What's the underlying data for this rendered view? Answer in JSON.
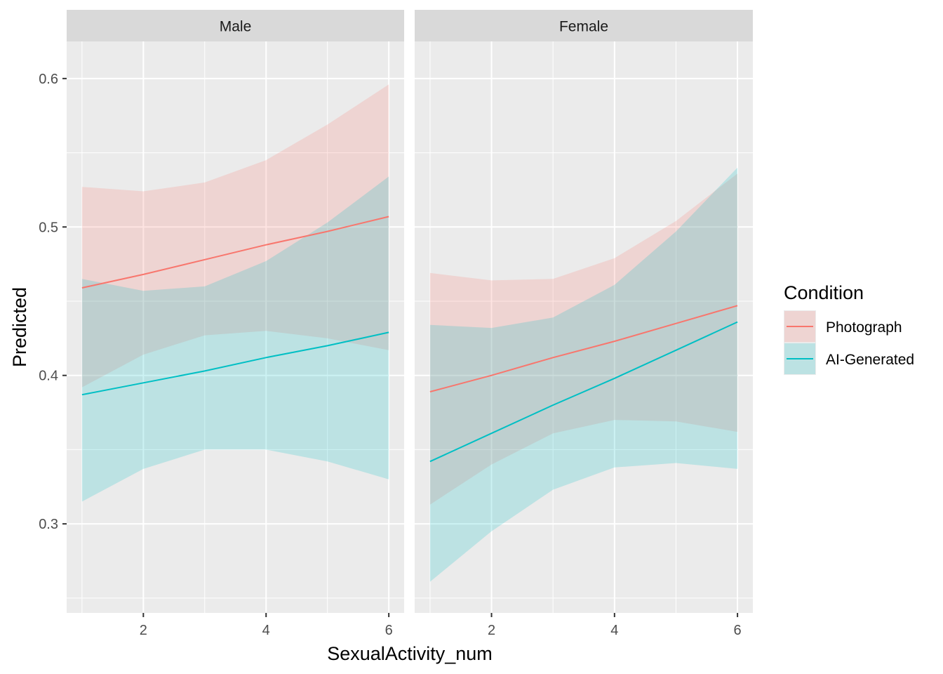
{
  "chart_data": {
    "type": "line",
    "facets": [
      {
        "label": "Male",
        "series": [
          {
            "name": "Photograph",
            "x": [
              1,
              2,
              3,
              4,
              5,
              6
            ],
            "y": [
              0.459,
              0.468,
              0.478,
              0.488,
              0.497,
              0.507
            ],
            "ci_lower": [
              0.392,
              0.414,
              0.427,
              0.43,
              0.425,
              0.417
            ],
            "ci_upper": [
              0.527,
              0.524,
              0.53,
              0.545,
              0.569,
              0.596
            ]
          },
          {
            "name": "AI-Generated",
            "x": [
              1,
              2,
              3,
              4,
              5,
              6
            ],
            "y": [
              0.387,
              0.395,
              0.403,
              0.412,
              0.42,
              0.429
            ],
            "ci_lower": [
              0.315,
              0.337,
              0.35,
              0.35,
              0.342,
              0.33
            ],
            "ci_upper": [
              0.465,
              0.457,
              0.46,
              0.477,
              0.503,
              0.534
            ]
          }
        ]
      },
      {
        "label": "Female",
        "series": [
          {
            "name": "Photograph",
            "x": [
              1,
              2,
              3,
              4,
              5,
              6
            ],
            "y": [
              0.389,
              0.4,
              0.412,
              0.423,
              0.435,
              0.447
            ],
            "ci_lower": [
              0.313,
              0.34,
              0.361,
              0.37,
              0.369,
              0.362
            ],
            "ci_upper": [
              0.469,
              0.464,
              0.465,
              0.479,
              0.504,
              0.536
            ]
          },
          {
            "name": "AI-Generated",
            "x": [
              1,
              2,
              3,
              4,
              5,
              6
            ],
            "y": [
              0.342,
              0.361,
              0.38,
              0.398,
              0.417,
              0.436
            ],
            "ci_lower": [
              0.261,
              0.295,
              0.323,
              0.338,
              0.341,
              0.337
            ],
            "ci_upper": [
              0.434,
              0.432,
              0.439,
              0.461,
              0.497,
              0.54
            ]
          }
        ]
      }
    ],
    "xlabel": "SexualActivity_num",
    "ylabel": "Predicted",
    "xlim": [
      0.75,
      6.25
    ],
    "ylim": [
      0.24,
      0.625
    ],
    "x_ticks": [
      2,
      4,
      6
    ],
    "x_tick_labels": [
      "2",
      "4",
      "6"
    ],
    "x_minor_ticks": [
      1,
      3,
      5
    ],
    "y_ticks": [
      0.3,
      0.4,
      0.5,
      0.6
    ],
    "y_tick_labels": [
      "0.3",
      "0.4",
      "0.5",
      "0.6"
    ],
    "y_minor_ticks": [
      0.25,
      0.35,
      0.45,
      0.55
    ],
    "grid": true,
    "legend": {
      "title": "Condition",
      "position": "right",
      "entries": [
        {
          "label": "Photograph",
          "color": "#F8766D"
        },
        {
          "label": "AI-Generated",
          "color": "#00BFC4"
        }
      ]
    },
    "colors": {
      "panel_background": "#EBEBEB",
      "strip_background": "#D9D9D9",
      "grid": "#FFFFFF",
      "Photograph": "#F8766D",
      "AI-Generated": "#00BFC4"
    }
  }
}
